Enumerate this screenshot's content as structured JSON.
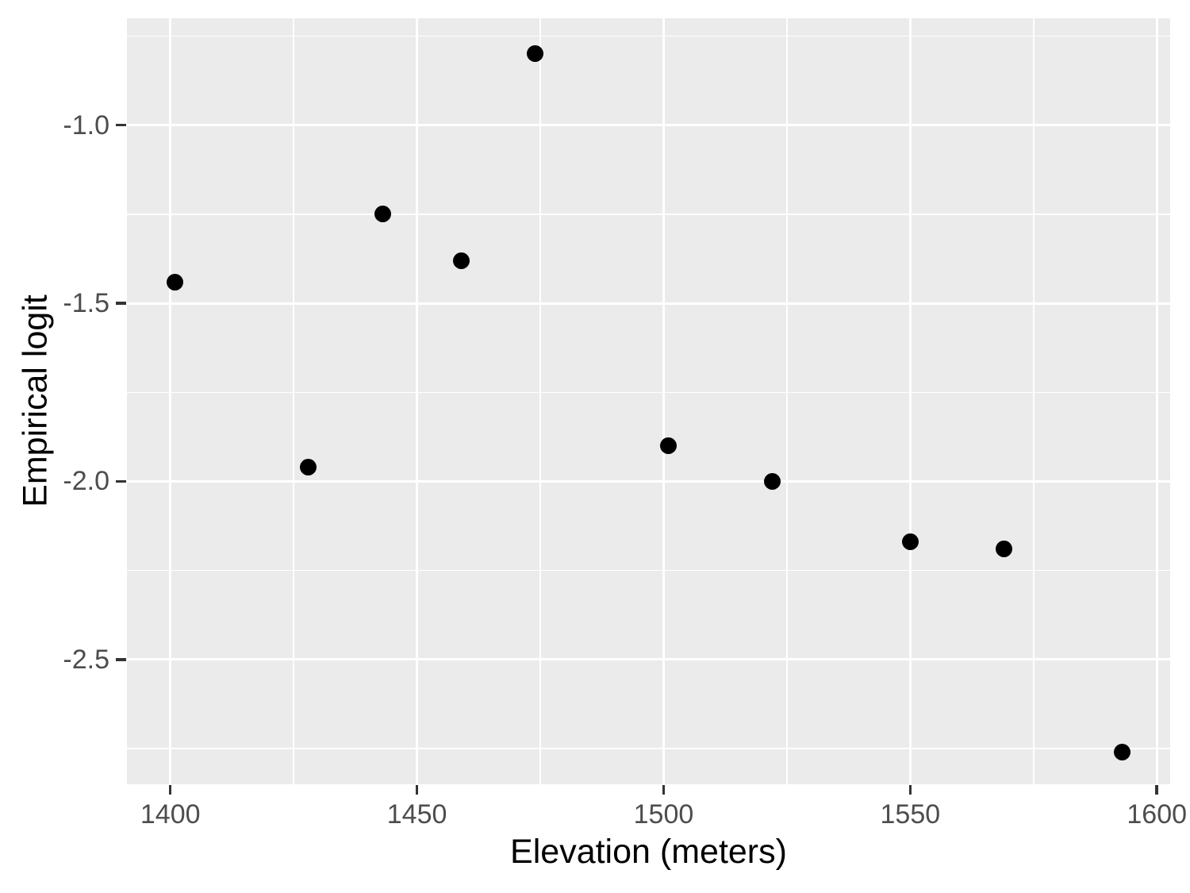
{
  "chart_data": {
    "type": "scatter",
    "title": "",
    "xlabel": "Elevation (meters)",
    "ylabel": "Empirical logit",
    "points": [
      {
        "x": 1401,
        "y": -1.44
      },
      {
        "x": 1428,
        "y": -1.96
      },
      {
        "x": 1443,
        "y": -1.25
      },
      {
        "x": 1459,
        "y": -1.38
      },
      {
        "x": 1474,
        "y": -0.8
      },
      {
        "x": 1501,
        "y": -1.9
      },
      {
        "x": 1522,
        "y": -2.0
      },
      {
        "x": 1550,
        "y": -2.17
      },
      {
        "x": 1569,
        "y": -2.19
      },
      {
        "x": 1593,
        "y": -2.76
      }
    ],
    "xlim": [
      1391.2,
      1602.7
    ],
    "ylim": [
      -2.85,
      -0.7
    ],
    "x_ticks": [
      1400,
      1450,
      1500,
      1550,
      1600
    ],
    "x_tick_labels": [
      "1400",
      "1450",
      "1500",
      "1550",
      "1600"
    ],
    "y_ticks": [
      -1.0,
      -1.5,
      -2.0,
      -2.5
    ],
    "y_tick_labels": [
      "-1.0",
      "-1.5",
      "-2.0",
      "-2.5"
    ],
    "x_minor_ticks": [
      1425,
      1475,
      1525,
      1575
    ],
    "y_minor_ticks": [
      -0.75,
      -1.25,
      -1.75,
      -2.25,
      -2.75
    ],
    "grid": true,
    "legend": "none",
    "colors": {
      "panel_background": "#EBEBEB",
      "gridline": "#FFFFFF",
      "point": "#000000",
      "tick_mark": "#333333",
      "tick_label": "#4D4D4D",
      "axis_title": "#000000",
      "figure_background": "#FFFFFF"
    }
  }
}
